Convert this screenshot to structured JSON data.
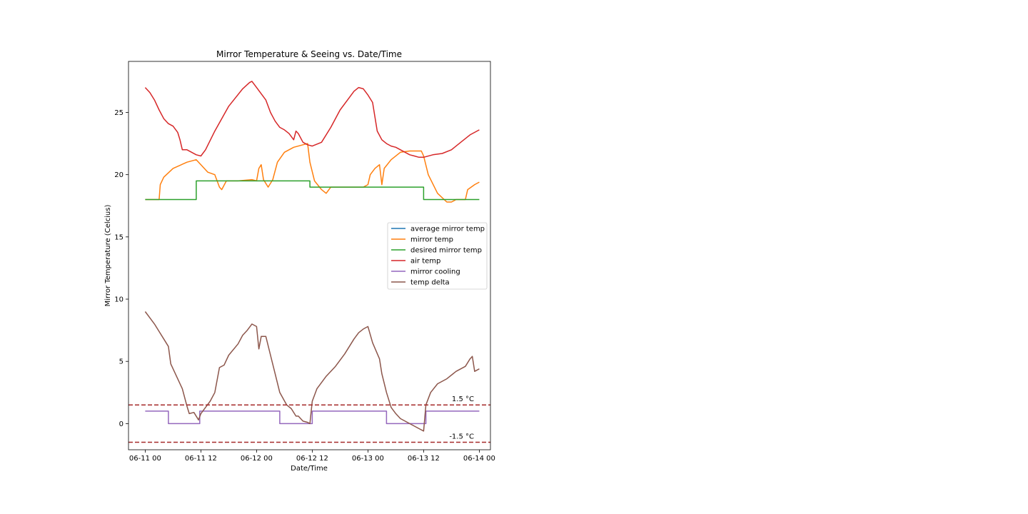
{
  "chart_data": {
    "type": "line",
    "title": "Mirror Temperature & Seeing vs. Date/Time",
    "xlabel": "Date/Time",
    "ylabel": "Mirror Temperature (Celcius)",
    "x_range": [
      "06-10 20:24",
      "06-14 02:24"
    ],
    "ylim": [
      -2.1,
      29.1
    ],
    "grid": false,
    "legend_placement": "center-right",
    "x_ticks": [
      {
        "t": "06-11 00:00",
        "label": "06-11 00"
      },
      {
        "t": "06-11 12:00",
        "label": "06-11 12"
      },
      {
        "t": "06-12 00:00",
        "label": "06-12 00"
      },
      {
        "t": "06-12 12:00",
        "label": "06-12 12"
      },
      {
        "t": "06-13 00:00",
        "label": "06-13 00"
      },
      {
        "t": "06-13 12:00",
        "label": "06-13 12"
      },
      {
        "t": "06-14 00:00",
        "label": "06-14 00"
      }
    ],
    "y_ticks": [
      0,
      5,
      10,
      15,
      20,
      25
    ],
    "series": [
      {
        "name": "average mirror temp",
        "color": "#1f77b4",
        "points": []
      },
      {
        "name": "mirror temp",
        "color": "#ff7f0e",
        "points": [
          [
            "06-11 00:00",
            18.0
          ],
          [
            "06-11 02:00",
            18.0
          ],
          [
            "06-11 03:00",
            18.0
          ],
          [
            "06-11 03:15",
            19.2
          ],
          [
            "06-11 04:00",
            19.8
          ],
          [
            "06-11 06:00",
            20.5
          ],
          [
            "06-11 09:00",
            21.0
          ],
          [
            "06-11 11:00",
            21.2
          ],
          [
            "06-11 12:00",
            20.8
          ],
          [
            "06-11 13:30",
            20.2
          ],
          [
            "06-11 15:00",
            20.0
          ],
          [
            "06-11 16:00",
            19.0
          ],
          [
            "06-11 16:30",
            18.8
          ],
          [
            "06-11 17:30",
            19.5
          ],
          [
            "06-11 20:00",
            19.5
          ],
          [
            "06-11 23:00",
            19.6
          ],
          [
            "06-12 00:00",
            19.5
          ],
          [
            "06-12 00:30",
            20.5
          ],
          [
            "06-12 01:00",
            20.8
          ],
          [
            "06-12 01:30",
            19.6
          ],
          [
            "06-12 02:30",
            19.0
          ],
          [
            "06-12 03:30",
            19.6
          ],
          [
            "06-12 04:30",
            21.0
          ],
          [
            "06-12 06:00",
            21.8
          ],
          [
            "06-12 08:00",
            22.2
          ],
          [
            "06-12 10:00",
            22.4
          ],
          [
            "06-12 11:00",
            22.5
          ],
          [
            "06-12 11:30",
            21.0
          ],
          [
            "06-12 12:30",
            19.5
          ],
          [
            "06-12 14:00",
            18.8
          ],
          [
            "06-12 15:00",
            18.5
          ],
          [
            "06-12 16:00",
            19.0
          ],
          [
            "06-12 20:00",
            19.0
          ],
          [
            "06-12 23:00",
            19.0
          ],
          [
            "06-13 00:00",
            19.2
          ],
          [
            "06-13 00:30",
            20.0
          ],
          [
            "06-13 01:30",
            20.5
          ],
          [
            "06-13 02:30",
            20.8
          ],
          [
            "06-13 03:00",
            19.2
          ],
          [
            "06-13 03:30",
            20.5
          ],
          [
            "06-13 05:00",
            21.2
          ],
          [
            "06-13 07:00",
            21.8
          ],
          [
            "06-13 09:00",
            21.9
          ],
          [
            "06-13 11:30",
            21.9
          ],
          [
            "06-13 12:00",
            21.5
          ],
          [
            "06-13 13:00",
            20.0
          ],
          [
            "06-13 15:00",
            18.5
          ],
          [
            "06-13 17:00",
            17.8
          ],
          [
            "06-13 18:00",
            17.8
          ],
          [
            "06-13 19:00",
            18.0
          ],
          [
            "06-13 21:00",
            18.0
          ],
          [
            "06-13 21:30",
            18.8
          ],
          [
            "06-13 23:00",
            19.2
          ],
          [
            "06-14 00:00",
            19.4
          ]
        ]
      },
      {
        "name": "desired mirror temp",
        "color": "#2ca02c",
        "points": [
          [
            "06-11 00:00",
            18.0
          ],
          [
            "06-11 11:00",
            18.0
          ],
          [
            "06-11 11:00",
            19.5
          ],
          [
            "06-12 11:30",
            19.5
          ],
          [
            "06-12 11:30",
            19.0
          ],
          [
            "06-13 12:00",
            19.0
          ],
          [
            "06-13 12:00",
            18.0
          ],
          [
            "06-14 00:00",
            18.0
          ]
        ]
      },
      {
        "name": "air temp",
        "color": "#d62728",
        "points": [
          [
            "06-11 00:00",
            27.0
          ],
          [
            "06-11 01:00",
            26.6
          ],
          [
            "06-11 02:00",
            26.0
          ],
          [
            "06-11 03:00",
            25.2
          ],
          [
            "06-11 04:00",
            24.5
          ],
          [
            "06-11 05:00",
            24.1
          ],
          [
            "06-11 06:00",
            23.9
          ],
          [
            "06-11 07:00",
            23.4
          ],
          [
            "06-11 07:30",
            22.8
          ],
          [
            "06-11 08:00",
            22.0
          ],
          [
            "06-11 09:00",
            22.0
          ],
          [
            "06-11 11:00",
            21.6
          ],
          [
            "06-11 12:00",
            21.5
          ],
          [
            "06-11 13:00",
            22.0
          ],
          [
            "06-11 15:00",
            23.5
          ],
          [
            "06-11 18:00",
            25.5
          ],
          [
            "06-11 21:00",
            26.9
          ],
          [
            "06-11 22:30",
            27.4
          ],
          [
            "06-11 23:00",
            27.5
          ],
          [
            "06-12 00:00",
            27.0
          ],
          [
            "06-12 01:00",
            26.5
          ],
          [
            "06-12 02:00",
            26.0
          ],
          [
            "06-12 03:00",
            25.0
          ],
          [
            "06-12 04:00",
            24.3
          ],
          [
            "06-12 05:00",
            23.8
          ],
          [
            "06-12 06:00",
            23.6
          ],
          [
            "06-12 07:00",
            23.3
          ],
          [
            "06-12 08:00",
            22.8
          ],
          [
            "06-12 08:30",
            23.5
          ],
          [
            "06-12 09:00",
            23.3
          ],
          [
            "06-12 10:00",
            22.6
          ],
          [
            "06-12 11:00",
            22.4
          ],
          [
            "06-12 12:00",
            22.3
          ],
          [
            "06-12 14:00",
            22.6
          ],
          [
            "06-12 16:00",
            23.8
          ],
          [
            "06-12 18:00",
            25.2
          ],
          [
            "06-12 20:00",
            26.2
          ],
          [
            "06-12 21:00",
            26.7
          ],
          [
            "06-12 22:00",
            27.0
          ],
          [
            "06-12 23:00",
            26.9
          ],
          [
            "06-13 00:00",
            26.4
          ],
          [
            "06-13 01:00",
            25.8
          ],
          [
            "06-13 02:00",
            23.5
          ],
          [
            "06-13 03:00",
            22.8
          ],
          [
            "06-13 04:00",
            22.5
          ],
          [
            "06-13 05:00",
            22.3
          ],
          [
            "06-13 06:00",
            22.2
          ],
          [
            "06-13 07:00",
            22.0
          ],
          [
            "06-13 08:00",
            21.8
          ],
          [
            "06-13 09:00",
            21.6
          ],
          [
            "06-13 10:00",
            21.5
          ],
          [
            "06-13 11:00",
            21.4
          ],
          [
            "06-13 12:00",
            21.4
          ],
          [
            "06-13 14:00",
            21.6
          ],
          [
            "06-13 16:00",
            21.7
          ],
          [
            "06-13 18:00",
            22.0
          ],
          [
            "06-13 20:00",
            22.6
          ],
          [
            "06-13 22:00",
            23.2
          ],
          [
            "06-13 23:00",
            23.4
          ],
          [
            "06-14 00:00",
            23.6
          ]
        ]
      },
      {
        "name": "mirror cooling",
        "color": "#9467bd",
        "points": [
          [
            "06-11 00:00",
            1.0
          ],
          [
            "06-11 05:00",
            1.0
          ],
          [
            "06-11 05:00",
            0.0
          ],
          [
            "06-11 11:45",
            0.0
          ],
          [
            "06-11 11:45",
            1.0
          ],
          [
            "06-12 05:00",
            1.0
          ],
          [
            "06-12 05:00",
            0.0
          ],
          [
            "06-12 12:00",
            0.0
          ],
          [
            "06-12 12:00",
            1.0
          ],
          [
            "06-13 04:00",
            1.0
          ],
          [
            "06-13 04:00",
            0.0
          ],
          [
            "06-13 12:30",
            0.0
          ],
          [
            "06-13 12:30",
            1.0
          ],
          [
            "06-14 00:00",
            1.0
          ]
        ]
      },
      {
        "name": "temp delta",
        "color": "#8c564b",
        "points": [
          [
            "06-11 00:00",
            9.0
          ],
          [
            "06-11 01:00",
            8.5
          ],
          [
            "06-11 02:00",
            8.0
          ],
          [
            "06-11 03:00",
            7.4
          ],
          [
            "06-11 04:00",
            6.8
          ],
          [
            "06-11 05:00",
            6.2
          ],
          [
            "06-11 05:30",
            4.8
          ],
          [
            "06-11 07:00",
            3.6
          ],
          [
            "06-11 08:00",
            2.8
          ],
          [
            "06-11 09:00",
            1.4
          ],
          [
            "06-11 09:30",
            0.8
          ],
          [
            "06-11 10:30",
            0.9
          ],
          [
            "06-11 11:30",
            0.3
          ],
          [
            "06-11 12:00",
            0.8
          ],
          [
            "06-11 13:00",
            1.3
          ],
          [
            "06-11 14:00",
            1.8
          ],
          [
            "06-11 15:00",
            2.5
          ],
          [
            "06-11 16:00",
            4.5
          ],
          [
            "06-11 17:00",
            4.7
          ],
          [
            "06-11 18:00",
            5.5
          ],
          [
            "06-11 20:00",
            6.4
          ],
          [
            "06-11 21:00",
            7.1
          ],
          [
            "06-11 22:00",
            7.5
          ],
          [
            "06-11 23:00",
            8.0
          ],
          [
            "06-12 00:00",
            7.8
          ],
          [
            "06-12 00:30",
            6.0
          ],
          [
            "06-12 01:00",
            7.0
          ],
          [
            "06-12 02:00",
            7.0
          ],
          [
            "06-12 03:00",
            5.5
          ],
          [
            "06-12 04:00",
            4.0
          ],
          [
            "06-12 05:00",
            2.5
          ],
          [
            "06-12 06:30",
            1.5
          ],
          [
            "06-12 07:30",
            1.2
          ],
          [
            "06-12 08:30",
            0.6
          ],
          [
            "06-12 09:00",
            0.6
          ],
          [
            "06-12 10:00",
            0.2
          ],
          [
            "06-12 11:00",
            0.1
          ],
          [
            "06-12 11:30",
            0.0
          ],
          [
            "06-12 12:00",
            1.8
          ],
          [
            "06-12 13:00",
            2.8
          ],
          [
            "06-12 15:00",
            3.8
          ],
          [
            "06-12 17:00",
            4.6
          ],
          [
            "06-12 19:00",
            5.6
          ],
          [
            "06-12 21:00",
            6.8
          ],
          [
            "06-12 22:00",
            7.3
          ],
          [
            "06-12 23:00",
            7.6
          ],
          [
            "06-13 00:00",
            7.8
          ],
          [
            "06-13 01:00",
            6.5
          ],
          [
            "06-13 02:30",
            5.2
          ],
          [
            "06-13 03:00",
            4.0
          ],
          [
            "06-13 04:00",
            2.5
          ],
          [
            "06-13 05:00",
            1.3
          ],
          [
            "06-13 06:00",
            0.8
          ],
          [
            "06-13 07:00",
            0.4
          ],
          [
            "06-13 08:00",
            0.2
          ],
          [
            "06-13 09:00",
            0.0
          ],
          [
            "06-13 10:00",
            -0.2
          ],
          [
            "06-13 11:00",
            -0.4
          ],
          [
            "06-13 12:00",
            -0.6
          ],
          [
            "06-13 12:30",
            1.5
          ],
          [
            "06-13 13:30",
            2.5
          ],
          [
            "06-13 15:00",
            3.2
          ],
          [
            "06-13 17:00",
            3.6
          ],
          [
            "06-13 19:00",
            4.2
          ],
          [
            "06-13 21:00",
            4.6
          ],
          [
            "06-13 22:00",
            5.2
          ],
          [
            "06-13 22:30",
            5.4
          ],
          [
            "06-13 23:00",
            4.2
          ],
          [
            "06-14 00:00",
            4.4
          ]
        ]
      }
    ],
    "threshold_lines": [
      {
        "value": 1.5,
        "label": "1.5 °C",
        "color": "#a52a2a"
      },
      {
        "value": -1.5,
        "label": "-1.5 °C",
        "color": "#a52a2a"
      }
    ]
  }
}
